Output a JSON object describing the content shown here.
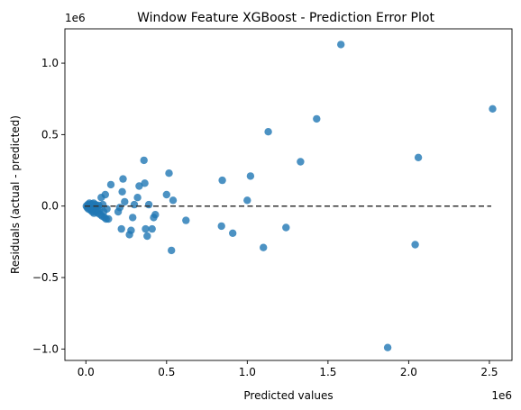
{
  "chart_data": {
    "type": "scatter",
    "title": "Window Feature XGBoost - Prediction Error Plot",
    "xlabel": "Predicted values",
    "ylabel": "Residuals (actual - predicted)",
    "x_offset_label": "1e6",
    "y_offset_label": "1e6",
    "xlim": [
      -0.13,
      2.64
    ],
    "ylim": [
      -1.08,
      1.24
    ],
    "x_ticks": [
      0.0,
      0.5,
      1.0,
      1.5,
      2.0,
      2.5
    ],
    "x_tick_labels": [
      "0.0",
      "0.5",
      "1.0",
      "1.5",
      "2.0",
      "2.5"
    ],
    "y_ticks": [
      -1.0,
      -0.5,
      0.0,
      0.5,
      1.0
    ],
    "y_tick_labels": [
      "−1.0",
      "−0.5",
      "0.0",
      "0.5",
      "1.0"
    ],
    "grid": false,
    "reference_line": {
      "y": 0,
      "style": "dashed",
      "color": "#333333"
    },
    "point_color": "#1f77b4",
    "points": [
      [
        0.003,
        0.0
      ],
      [
        0.008,
        -0.01
      ],
      [
        0.012,
        0.01
      ],
      [
        0.015,
        -0.02
      ],
      [
        0.018,
        0.005
      ],
      [
        0.02,
        -0.005
      ],
      [
        0.022,
        0.02
      ],
      [
        0.025,
        -0.015
      ],
      [
        0.028,
        0.0
      ],
      [
        0.03,
        -0.03
      ],
      [
        0.032,
        0.01
      ],
      [
        0.035,
        -0.02
      ],
      [
        0.038,
        0.015
      ],
      [
        0.04,
        -0.04
      ],
      [
        0.042,
        0.0
      ],
      [
        0.045,
        -0.01
      ],
      [
        0.048,
        0.02
      ],
      [
        0.05,
        -0.05
      ],
      [
        0.052,
        -0.02
      ],
      [
        0.055,
        0.0
      ],
      [
        0.058,
        -0.03
      ],
      [
        0.06,
        0.01
      ],
      [
        0.062,
        -0.04
      ],
      [
        0.065,
        -0.01
      ],
      [
        0.068,
        0.0
      ],
      [
        0.07,
        -0.02
      ],
      [
        0.075,
        -0.05
      ],
      [
        0.08,
        0.005
      ],
      [
        0.085,
        -0.03
      ],
      [
        0.09,
        -0.06
      ],
      [
        0.095,
        0.06
      ],
      [
        0.1,
        -0.07
      ],
      [
        0.105,
        0.01
      ],
      [
        0.11,
        -0.04
      ],
      [
        0.115,
        -0.08
      ],
      [
        0.12,
        0.08
      ],
      [
        0.125,
        -0.09
      ],
      [
        0.13,
        -0.02
      ],
      [
        0.14,
        -0.09
      ],
      [
        0.155,
        0.15
      ],
      [
        0.2,
        -0.04
      ],
      [
        0.21,
        -0.01
      ],
      [
        0.22,
        -0.16
      ],
      [
        0.225,
        0.1
      ],
      [
        0.23,
        0.19
      ],
      [
        0.24,
        0.03
      ],
      [
        0.27,
        -0.2
      ],
      [
        0.28,
        -0.17
      ],
      [
        0.29,
        -0.08
      ],
      [
        0.3,
        0.01
      ],
      [
        0.32,
        0.06
      ],
      [
        0.33,
        0.14
      ],
      [
        0.36,
        0.32
      ],
      [
        0.365,
        0.16
      ],
      [
        0.37,
        -0.16
      ],
      [
        0.38,
        -0.21
      ],
      [
        0.39,
        0.01
      ],
      [
        0.41,
        -0.16
      ],
      [
        0.42,
        -0.08
      ],
      [
        0.43,
        -0.06
      ],
      [
        0.5,
        0.08
      ],
      [
        0.515,
        0.23
      ],
      [
        0.53,
        -0.31
      ],
      [
        0.54,
        0.04
      ],
      [
        0.62,
        -0.1
      ],
      [
        0.84,
        -0.14
      ],
      [
        0.845,
        0.18
      ],
      [
        0.91,
        -0.19
      ],
      [
        1.0,
        0.04
      ],
      [
        1.02,
        0.21
      ],
      [
        1.1,
        -0.29
      ],
      [
        1.13,
        0.52
      ],
      [
        1.24,
        -0.15
      ],
      [
        1.33,
        0.31
      ],
      [
        1.43,
        0.61
      ],
      [
        1.58,
        1.13
      ],
      [
        1.87,
        -0.99
      ],
      [
        2.04,
        -0.27
      ],
      [
        2.06,
        0.34
      ],
      [
        2.52,
        0.68
      ]
    ]
  }
}
